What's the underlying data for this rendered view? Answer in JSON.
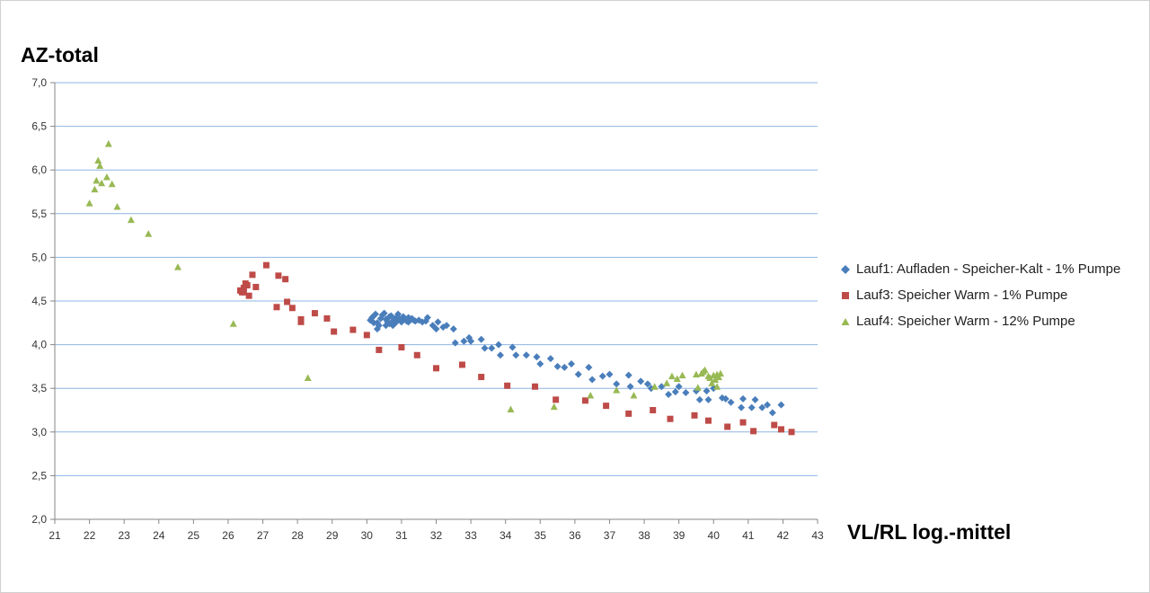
{
  "chart_data": {
    "type": "scatter",
    "xlabel": "VL/RL log.-mittel",
    "ylabel": "AZ-total",
    "xlim": [
      21,
      43
    ],
    "ylim": [
      2.0,
      7.0
    ],
    "xticks": [
      "21",
      "22",
      "23",
      "24",
      "25",
      "26",
      "27",
      "28",
      "29",
      "30",
      "31",
      "32",
      "33",
      "34",
      "35",
      "36",
      "37",
      "38",
      "39",
      "40",
      "41",
      "42",
      "43"
    ],
    "yticks": [
      "2,0",
      "2,5",
      "3,0",
      "3,5",
      "4,0",
      "4,5",
      "5,0",
      "5,5",
      "6,0",
      "6,5",
      "7,0"
    ],
    "grid": "horizontal",
    "legend_position": "right",
    "series": [
      {
        "name": "Lauf1: Aufladen - Speicher-Kalt - 1% Pumpe",
        "color": "#4a7ebb",
        "marker": "diamond",
        "points": [
          [
            30.1,
            4.28
          ],
          [
            30.15,
            4.31
          ],
          [
            30.2,
            4.33
          ],
          [
            30.25,
            4.35
          ],
          [
            30.3,
            4.25
          ],
          [
            30.35,
            4.22
          ],
          [
            30.4,
            4.3
          ],
          [
            30.45,
            4.34
          ],
          [
            30.5,
            4.36
          ],
          [
            30.55,
            4.29
          ],
          [
            30.6,
            4.26
          ],
          [
            30.65,
            4.32
          ],
          [
            30.7,
            4.33
          ],
          [
            30.75,
            4.27
          ],
          [
            30.8,
            4.24
          ],
          [
            30.85,
            4.31
          ],
          [
            30.9,
            4.35
          ],
          [
            30.95,
            4.29
          ],
          [
            31.0,
            4.28
          ],
          [
            31.05,
            4.32
          ],
          [
            31.1,
            4.3
          ],
          [
            31.15,
            4.27
          ],
          [
            31.2,
            4.31
          ],
          [
            31.25,
            4.29
          ],
          [
            31.3,
            4.3
          ],
          [
            31.35,
            4.28
          ],
          [
            31.4,
            4.27
          ],
          [
            31.5,
            4.28
          ],
          [
            31.6,
            4.26
          ],
          [
            31.7,
            4.27
          ],
          [
            30.2,
            4.25
          ],
          [
            30.3,
            4.18
          ],
          [
            30.55,
            4.22
          ],
          [
            30.65,
            4.24
          ],
          [
            30.75,
            4.22
          ],
          [
            30.85,
            4.26
          ],
          [
            31.0,
            4.26
          ],
          [
            31.2,
            4.26
          ],
          [
            31.75,
            4.31
          ],
          [
            31.9,
            4.22
          ],
          [
            32.0,
            4.18
          ],
          [
            32.05,
            4.26
          ],
          [
            32.2,
            4.2
          ],
          [
            32.3,
            4.22
          ],
          [
            32.5,
            4.18
          ],
          [
            32.55,
            4.02
          ],
          [
            32.8,
            4.04
          ],
          [
            32.95,
            4.08
          ],
          [
            33.0,
            4.04
          ],
          [
            33.3,
            4.06
          ],
          [
            33.4,
            3.96
          ],
          [
            33.6,
            3.96
          ],
          [
            33.8,
            4.0
          ],
          [
            33.85,
            3.88
          ],
          [
            34.2,
            3.97
          ],
          [
            34.3,
            3.88
          ],
          [
            34.6,
            3.88
          ],
          [
            34.9,
            3.86
          ],
          [
            35.0,
            3.78
          ],
          [
            35.3,
            3.84
          ],
          [
            35.5,
            3.75
          ],
          [
            35.7,
            3.74
          ],
          [
            35.9,
            3.78
          ],
          [
            36.1,
            3.66
          ],
          [
            36.4,
            3.74
          ],
          [
            36.5,
            3.6
          ],
          [
            36.8,
            3.64
          ],
          [
            37.0,
            3.66
          ],
          [
            37.2,
            3.55
          ],
          [
            37.55,
            3.65
          ],
          [
            37.6,
            3.52
          ],
          [
            37.9,
            3.58
          ],
          [
            38.1,
            3.55
          ],
          [
            38.2,
            3.5
          ],
          [
            38.5,
            3.52
          ],
          [
            38.7,
            3.43
          ],
          [
            38.9,
            3.46
          ],
          [
            39.0,
            3.52
          ],
          [
            39.2,
            3.45
          ],
          [
            39.5,
            3.47
          ],
          [
            39.6,
            3.37
          ],
          [
            39.8,
            3.47
          ],
          [
            39.85,
            3.37
          ],
          [
            40.0,
            3.5
          ],
          [
            40.25,
            3.39
          ],
          [
            40.35,
            3.38
          ],
          [
            40.5,
            3.34
          ],
          [
            40.8,
            3.28
          ],
          [
            40.85,
            3.38
          ],
          [
            41.1,
            3.28
          ],
          [
            41.2,
            3.37
          ],
          [
            41.4,
            3.28
          ],
          [
            41.55,
            3.31
          ],
          [
            41.7,
            3.22
          ],
          [
            41.95,
            3.31
          ]
        ]
      },
      {
        "name": "Lauf3: Speicher Warm - 1% Pumpe",
        "color": "#be4b48",
        "marker": "square",
        "points": [
          [
            26.35,
            4.62
          ],
          [
            26.4,
            4.6
          ],
          [
            26.45,
            4.65
          ],
          [
            26.5,
            4.7
          ],
          [
            26.45,
            4.6
          ],
          [
            26.55,
            4.68
          ],
          [
            26.6,
            4.56
          ],
          [
            26.7,
            4.8
          ],
          [
            26.8,
            4.66
          ],
          [
            27.1,
            4.91
          ],
          [
            27.4,
            4.43
          ],
          [
            27.45,
            4.79
          ],
          [
            27.65,
            4.75
          ],
          [
            27.7,
            4.49
          ],
          [
            27.85,
            4.42
          ],
          [
            28.1,
            4.29
          ],
          [
            28.1,
            4.26
          ],
          [
            28.5,
            4.36
          ],
          [
            28.85,
            4.3
          ],
          [
            29.05,
            4.15
          ],
          [
            29.6,
            4.17
          ],
          [
            30.0,
            4.11
          ],
          [
            30.35,
            3.94
          ],
          [
            31.0,
            3.97
          ],
          [
            31.45,
            3.88
          ],
          [
            32.0,
            3.73
          ],
          [
            32.75,
            3.77
          ],
          [
            33.3,
            3.63
          ],
          [
            34.05,
            3.53
          ],
          [
            34.85,
            3.52
          ],
          [
            35.45,
            3.37
          ],
          [
            36.3,
            3.36
          ],
          [
            36.9,
            3.3
          ],
          [
            37.55,
            3.21
          ],
          [
            38.25,
            3.25
          ],
          [
            38.75,
            3.15
          ],
          [
            39.45,
            3.19
          ],
          [
            39.85,
            3.13
          ],
          [
            40.85,
            3.11
          ],
          [
            40.4,
            3.06
          ],
          [
            41.15,
            3.01
          ],
          [
            41.75,
            3.08
          ],
          [
            41.95,
            3.03
          ],
          [
            42.25,
            3.0
          ]
        ]
      },
      {
        "name": "Lauf4: Speicher Warm - 12% Pumpe",
        "color": "#98b954",
        "marker": "triangle",
        "points": [
          [
            22.0,
            5.62
          ],
          [
            22.15,
            5.78
          ],
          [
            22.2,
            5.88
          ],
          [
            22.25,
            6.11
          ],
          [
            22.3,
            6.05
          ],
          [
            22.35,
            5.85
          ],
          [
            22.5,
            5.92
          ],
          [
            22.55,
            6.3
          ],
          [
            22.65,
            5.84
          ],
          [
            22.8,
            5.58
          ],
          [
            23.2,
            5.43
          ],
          [
            23.7,
            5.27
          ],
          [
            24.55,
            4.89
          ],
          [
            26.15,
            4.24
          ],
          [
            28.3,
            3.62
          ],
          [
            34.15,
            3.26
          ],
          [
            35.4,
            3.29
          ],
          [
            36.45,
            3.42
          ],
          [
            37.2,
            3.48
          ],
          [
            37.7,
            3.42
          ],
          [
            38.3,
            3.52
          ],
          [
            38.65,
            3.56
          ],
          [
            38.8,
            3.64
          ],
          [
            38.95,
            3.61
          ],
          [
            39.1,
            3.65
          ],
          [
            39.5,
            3.66
          ],
          [
            39.55,
            3.51
          ],
          [
            39.65,
            3.67
          ],
          [
            39.7,
            3.69
          ],
          [
            39.75,
            3.71
          ],
          [
            39.85,
            3.64
          ],
          [
            39.9,
            3.62
          ],
          [
            39.95,
            3.56
          ],
          [
            40.0,
            3.65
          ],
          [
            40.05,
            3.6
          ],
          [
            40.1,
            3.66
          ],
          [
            40.15,
            3.63
          ],
          [
            40.2,
            3.67
          ],
          [
            40.1,
            3.52
          ]
        ]
      }
    ]
  }
}
